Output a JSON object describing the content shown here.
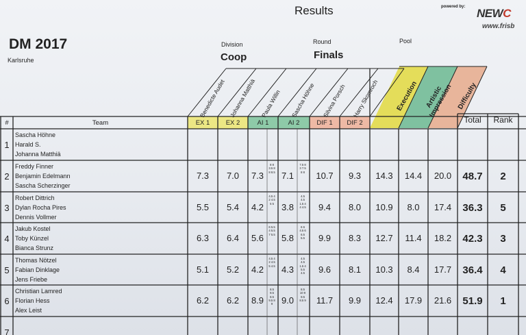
{
  "header": {
    "title": "Results",
    "powered_by": "powered by:",
    "logo_text_1": "NEW",
    "logo_text_2": "C",
    "logo_url": "www.frisb",
    "event": "DM 2017",
    "location": "Karlsruhe",
    "division_label": "Division",
    "division_value": "Coop",
    "round_label": "Round",
    "round_value": "Finals",
    "pool_label": "Pool"
  },
  "judges": [
    "Benedicte Audet",
    "Johanna Matthiä",
    "Paula Willin",
    "Sascha Höhne",
    "Silvina Porsch",
    "Harry Skomroch"
  ],
  "categories": [
    "Execution",
    "Artistic Impression",
    "Difficulty"
  ],
  "category_colors": {
    "execution": "#e4dd5a",
    "artistic": "#7fc1a0",
    "difficulty": "#e8b59b",
    "ex": "#ece784",
    "ai": "#8ecaa8",
    "dif": "#eeb9a5"
  },
  "columns": {
    "num": "#",
    "team": "Team",
    "ex1": "EX 1",
    "ex2": "EX 2",
    "ai1": "AI 1",
    "ai2": "AI 2",
    "dif1": "DIF 1",
    "dif2": "DIF 2",
    "total": "Total",
    "rank": "Rank"
  },
  "rows": [
    {
      "num": "1",
      "players": [
        "Sascha Höhne",
        "Harald S.",
        "Johanna Matthiä"
      ],
      "ex1": "",
      "ex2": "",
      "ai1": "",
      "ai1_detail": "",
      "ai2": "",
      "ai2_detail": "",
      "dif1": "",
      "dif2": "",
      "execution": "",
      "artistic": "",
      "difficulty": "",
      "total": "",
      "rank": ""
    },
    {
      "num": "2",
      "players": [
        "Freddy Finner",
        "Benjamin Edelmann",
        "Sascha Scherzinger"
      ],
      "ex1": "7.3",
      "ex2": "7.0",
      "ai1": "7.3",
      "ai1_detail": "8 8 3.5 8 8 8.5",
      "ai2": "7.1",
      "ai2_detail": "7.5 8 3 7.5 8 8",
      "dif1": "10.7",
      "dif2": "9.3",
      "execution": "14.3",
      "artistic": "14.4",
      "difficulty": "20.0",
      "total": "48.7",
      "rank": "2"
    },
    {
      "num": "3",
      "players": [
        "Robert Dittrich",
        "Dylan Rocha Pires",
        "Dennis Vollmer"
      ],
      "ex1": "5.5",
      "ex2": "5.4",
      "ai1": "4.2",
      "ai1_detail": "4.5 4 2 4.5 5 5",
      "ai2": "3.8",
      "ai2_detail": "4.5 4.5 1.5 4 4 4.5",
      "dif1": "9.4",
      "dif2": "8.0",
      "execution": "10.9",
      "artistic": "8.0",
      "difficulty": "17.4",
      "total": "36.3",
      "rank": "5"
    },
    {
      "num": "4",
      "players": [
        "Jakub Kostel",
        "Toby Künzel",
        "Bianca Strunz"
      ],
      "ex1": "6.3",
      "ex2": "6.4",
      "ai1": "5.6",
      "ai1_detail": "6 5.5 4 5.5 7 5.5",
      "ai2": "5.8",
      "ai2_detail": "6 6 4.5 6 6.5 5.5",
      "dif1": "9.9",
      "dif2": "8.3",
      "execution": "12.7",
      "artistic": "11.4",
      "difficulty": "18.2",
      "total": "42.3",
      "rank": "3"
    },
    {
      "num": "5",
      "players": [
        "Thomas Nötzel",
        "Fabian Dinklage",
        "Jens Friebe"
      ],
      "ex1": "5.1",
      "ex2": "5.2",
      "ai1": "4.2",
      "ai1_detail": "4.5 4 2 4.5 5 4.5",
      "ai2": "4.3",
      "ai2_detail": "4.5 4.5 1.5 4 5.5 4.5",
      "dif1": "9.6",
      "dif2": "8.1",
      "execution": "10.3",
      "artistic": "8.4",
      "difficulty": "17.7",
      "total": "36.4",
      "rank": "4"
    },
    {
      "num": "6",
      "players": [
        "Christian Lamred",
        "Florian Hess",
        "Alex Leist"
      ],
      "ex1": "6.2",
      "ex2": "6.2",
      "ai1": "8.9",
      "ai1_detail": "8.5 9.5 8.5 9.5 8 9",
      "ai2": "9.0",
      "ai2_detail": "8.5 10 9 9.5 8.5 9",
      "dif1": "11.7",
      "dif2": "9.9",
      "execution": "12.4",
      "artistic": "17.9",
      "difficulty": "21.6",
      "total": "51.9",
      "rank": "1"
    },
    {
      "num": "7",
      "players": [],
      "ex1": "",
      "ex2": "",
      "ai1": "",
      "ai1_detail": "",
      "ai2": "",
      "ai2_detail": "",
      "dif1": "",
      "dif2": "",
      "execution": "",
      "artistic": "",
      "difficulty": "",
      "total": "",
      "rank": ""
    }
  ]
}
